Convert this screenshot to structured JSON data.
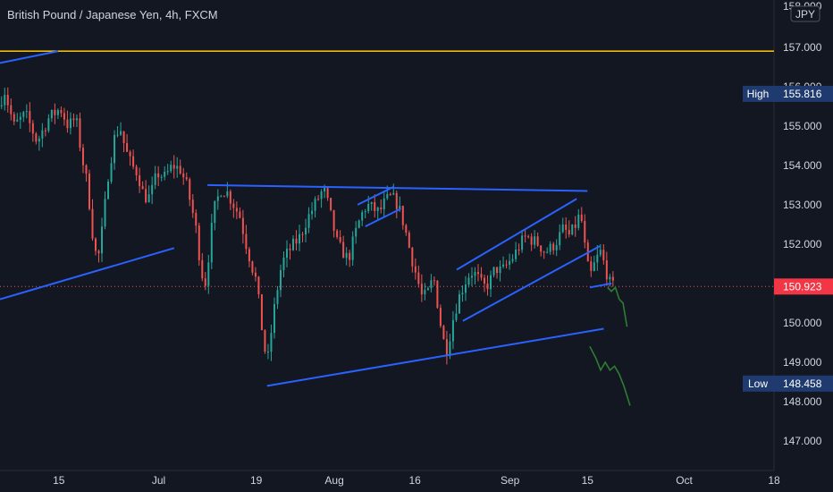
{
  "header": {
    "title": "British Pound / Japanese Yen, 4h, FXCM"
  },
  "currency_badge": "JPY",
  "colors": {
    "background": "#131722",
    "text": "#d1d4dc",
    "up": "#26a69a",
    "down": "#ef5350",
    "trendline": "#2962ff",
    "resistance": "#f0b90b",
    "projection": "#2e7d32",
    "price_label": "#f23645",
    "badge_bg": "#1e3a6e"
  },
  "chart_data": {
    "type": "candlestick",
    "symbol": "British Pound / Japanese Yen",
    "timeframe": "4h",
    "source": "FXCM",
    "currency": "JPY",
    "ylim": [
      146.25,
      158.2
    ],
    "y_ticks": [
      "157.000",
      "156.000",
      "155.000",
      "154.000",
      "153.000",
      "152.000",
      "151.000",
      "150.000",
      "149.000",
      "148.000",
      "147.000"
    ],
    "y_tick_values": [
      157,
      156,
      155,
      154,
      153,
      152,
      151,
      150,
      149,
      148,
      147
    ],
    "top_partial_tick": "158.000",
    "x_ticks": [
      {
        "label": "15",
        "t": 0.076
      },
      {
        "label": "Jul",
        "t": 0.205
      },
      {
        "label": "19",
        "t": 0.331
      },
      {
        "label": "Aug",
        "t": 0.432
      },
      {
        "label": "16",
        "t": 0.536
      },
      {
        "label": "Sep",
        "t": 0.659
      },
      {
        "label": "15",
        "t": 0.759
      },
      {
        "label": "Oct",
        "t": 0.884
      },
      {
        "label": "18",
        "t": 1.0
      }
    ],
    "candle_path": [
      {
        "t": 0.0,
        "p": 155.5
      },
      {
        "t": 0.008,
        "p": 155.9
      },
      {
        "t": 0.02,
        "p": 155.0
      },
      {
        "t": 0.035,
        "p": 155.3
      },
      {
        "t": 0.05,
        "p": 154.6
      },
      {
        "t": 0.065,
        "p": 155.2
      },
      {
        "t": 0.08,
        "p": 155.45
      },
      {
        "t": 0.09,
        "p": 155.0
      },
      {
        "t": 0.1,
        "p": 155.2
      },
      {
        "t": 0.108,
        "p": 154.2
      },
      {
        "t": 0.115,
        "p": 153.5
      },
      {
        "t": 0.122,
        "p": 152.2
      },
      {
        "t": 0.128,
        "p": 151.5
      },
      {
        "t": 0.135,
        "p": 152.5
      },
      {
        "t": 0.142,
        "p": 153.8
      },
      {
        "t": 0.15,
        "p": 154.7
      },
      {
        "t": 0.157,
        "p": 155.0
      },
      {
        "t": 0.164,
        "p": 154.4
      },
      {
        "t": 0.172,
        "p": 154.0
      },
      {
        "t": 0.18,
        "p": 153.8
      },
      {
        "t": 0.188,
        "p": 153.2
      },
      {
        "t": 0.196,
        "p": 153.2
      },
      {
        "t": 0.205,
        "p": 153.8
      },
      {
        "t": 0.215,
        "p": 153.7
      },
      {
        "t": 0.225,
        "p": 154.0
      },
      {
        "t": 0.235,
        "p": 153.9
      },
      {
        "t": 0.243,
        "p": 153.5
      },
      {
        "t": 0.25,
        "p": 152.9
      },
      {
        "t": 0.256,
        "p": 152.3
      },
      {
        "t": 0.262,
        "p": 151.3
      },
      {
        "t": 0.268,
        "p": 151.0
      },
      {
        "t": 0.274,
        "p": 152.2
      },
      {
        "t": 0.28,
        "p": 153.0
      },
      {
        "t": 0.288,
        "p": 153.4
      },
      {
        "t": 0.296,
        "p": 153.3
      },
      {
        "t": 0.304,
        "p": 153.0
      },
      {
        "t": 0.312,
        "p": 152.7
      },
      {
        "t": 0.32,
        "p": 152.0
      },
      {
        "t": 0.328,
        "p": 151.4
      },
      {
        "t": 0.334,
        "p": 151.0
      },
      {
        "t": 0.338,
        "p": 150.2
      },
      {
        "t": 0.343,
        "p": 149.5
      },
      {
        "t": 0.347,
        "p": 148.9
      },
      {
        "t": 0.352,
        "p": 149.7
      },
      {
        "t": 0.358,
        "p": 150.6
      },
      {
        "t": 0.366,
        "p": 151.5
      },
      {
        "t": 0.374,
        "p": 151.8
      },
      {
        "t": 0.382,
        "p": 152.0
      },
      {
        "t": 0.39,
        "p": 152.2
      },
      {
        "t": 0.398,
        "p": 152.6
      },
      {
        "t": 0.406,
        "p": 152.9
      },
      {
        "t": 0.414,
        "p": 153.2
      },
      {
        "t": 0.42,
        "p": 153.4
      },
      {
        "t": 0.426,
        "p": 153.0
      },
      {
        "t": 0.432,
        "p": 152.5
      },
      {
        "t": 0.438,
        "p": 152.0
      },
      {
        "t": 0.445,
        "p": 151.8
      },
      {
        "t": 0.452,
        "p": 151.6
      },
      {
        "t": 0.46,
        "p": 152.2
      },
      {
        "t": 0.468,
        "p": 152.7
      },
      {
        "t": 0.476,
        "p": 153.0
      },
      {
        "t": 0.484,
        "p": 152.9
      },
      {
        "t": 0.492,
        "p": 152.8
      },
      {
        "t": 0.5,
        "p": 153.1
      },
      {
        "t": 0.508,
        "p": 153.2
      },
      {
        "t": 0.516,
        "p": 153.0
      },
      {
        "t": 0.524,
        "p": 152.5
      },
      {
        "t": 0.532,
        "p": 151.8
      },
      {
        "t": 0.54,
        "p": 151.2
      },
      {
        "t": 0.548,
        "p": 150.6
      },
      {
        "t": 0.556,
        "p": 150.8
      },
      {
        "t": 0.562,
        "p": 151.2
      },
      {
        "t": 0.568,
        "p": 150.4
      },
      {
        "t": 0.574,
        "p": 149.6
      },
      {
        "t": 0.58,
        "p": 149.3
      },
      {
        "t": 0.586,
        "p": 150.0
      },
      {
        "t": 0.594,
        "p": 150.6
      },
      {
        "t": 0.602,
        "p": 151.0
      },
      {
        "t": 0.61,
        "p": 151.3
      },
      {
        "t": 0.618,
        "p": 151.2
      },
      {
        "t": 0.626,
        "p": 150.9
      },
      {
        "t": 0.634,
        "p": 151.0
      },
      {
        "t": 0.642,
        "p": 151.4
      },
      {
        "t": 0.65,
        "p": 151.3
      },
      {
        "t": 0.658,
        "p": 151.5
      },
      {
        "t": 0.666,
        "p": 151.7
      },
      {
        "t": 0.674,
        "p": 152.0
      },
      {
        "t": 0.682,
        "p": 152.2
      },
      {
        "t": 0.69,
        "p": 152.1
      },
      {
        "t": 0.698,
        "p": 152.0
      },
      {
        "t": 0.706,
        "p": 151.8
      },
      {
        "t": 0.714,
        "p": 151.9
      },
      {
        "t": 0.722,
        "p": 152.1
      },
      {
        "t": 0.73,
        "p": 152.4
      },
      {
        "t": 0.738,
        "p": 152.2
      },
      {
        "t": 0.746,
        "p": 152.5
      },
      {
        "t": 0.752,
        "p": 152.8
      },
      {
        "t": 0.756,
        "p": 152.2
      },
      {
        "t": 0.76,
        "p": 151.5
      },
      {
        "t": 0.765,
        "p": 151.2
      },
      {
        "t": 0.772,
        "p": 151.6
      },
      {
        "t": 0.778,
        "p": 151.8
      },
      {
        "t": 0.784,
        "p": 151.4
      },
      {
        "t": 0.79,
        "p": 151.0
      },
      {
        "t": 0.794,
        "p": 150.92
      }
    ],
    "trendlines": [
      {
        "name": "support-upper-left",
        "x1": 0.0,
        "y1": 156.6,
        "x2": 0.075,
        "y2": 156.9
      },
      {
        "name": "support-left",
        "x1": 0.0,
        "y1": 150.6,
        "x2": 0.225,
        "y2": 151.9
      },
      {
        "name": "range-top",
        "x1": 0.268,
        "y1": 153.5,
        "x2": 0.759,
        "y2": 153.35
      },
      {
        "name": "range-bottom",
        "x1": 0.345,
        "y1": 148.4,
        "x2": 0.78,
        "y2": 149.85
      },
      {
        "name": "flag-upper",
        "x1": 0.462,
        "y1": 153.0,
        "x2": 0.508,
        "y2": 153.45
      },
      {
        "name": "flag-lower",
        "x1": 0.472,
        "y1": 152.45,
        "x2": 0.518,
        "y2": 152.9
      },
      {
        "name": "channel-upper",
        "x1": 0.59,
        "y1": 151.35,
        "x2": 0.745,
        "y2": 153.15
      },
      {
        "name": "channel-lower",
        "x1": 0.598,
        "y1": 150.05,
        "x2": 0.775,
        "y2": 151.95
      },
      {
        "name": "channel-close",
        "x1": 0.762,
        "y1": 150.9,
        "x2": 0.79,
        "y2": 151.0
      }
    ],
    "horizontal_resistance": 156.9,
    "projection_path": [
      {
        "t": 0.785,
        "p": 150.9
      },
      {
        "t": 0.79,
        "p": 150.8
      },
      {
        "t": 0.795,
        "p": 150.9
      },
      {
        "t": 0.8,
        "p": 150.6
      },
      {
        "t": 0.805,
        "p": 150.5
      },
      {
        "t": 0.81,
        "p": 149.9
      }
    ],
    "projection_path_2": [
      {
        "t": 0.762,
        "p": 149.4
      },
      {
        "t": 0.77,
        "p": 149.1
      },
      {
        "t": 0.776,
        "p": 148.8
      },
      {
        "t": 0.782,
        "p": 149.0
      },
      {
        "t": 0.788,
        "p": 148.8
      },
      {
        "t": 0.794,
        "p": 148.9
      },
      {
        "t": 0.8,
        "p": 148.7
      },
      {
        "t": 0.806,
        "p": 148.4
      },
      {
        "t": 0.814,
        "p": 147.9
      }
    ],
    "high": {
      "label": "High",
      "value": "155.816",
      "price": 155.816
    },
    "low": {
      "label": "Low",
      "value": "148.458",
      "price": 148.458
    },
    "last": {
      "value": "150.923",
      "price": 150.923
    }
  }
}
